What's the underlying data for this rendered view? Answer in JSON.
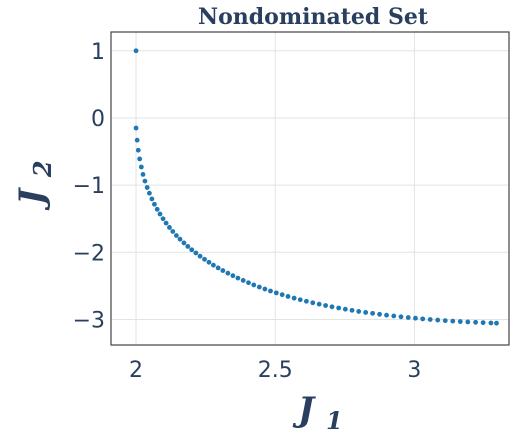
{
  "chart_data": {
    "type": "scatter",
    "title": "Nondominated Set",
    "xlabel": {
      "main": "J",
      "sub": "1"
    },
    "ylabel": {
      "main": "J",
      "sub": "2"
    },
    "xlim": [
      1.91,
      3.34
    ],
    "ylim": [
      -3.38,
      1.28
    ],
    "xticks": [
      2,
      2.5,
      3
    ],
    "xtick_labels": [
      "2",
      "2.5",
      "3"
    ],
    "yticks": [
      1,
      0,
      -1,
      -2,
      -3
    ],
    "ytick_labels": [
      "1",
      "0",
      "−1",
      "−2",
      "−3"
    ],
    "grid": true,
    "marker_color": "#1f77b4",
    "series": [
      {
        "points": [
          [
            2.0,
            1.0
          ],
          [
            2.0,
            -0.15
          ],
          [
            2.004,
            -0.33
          ],
          [
            2.008,
            -0.48
          ],
          [
            2.013,
            -0.61
          ],
          [
            2.019,
            -0.73
          ],
          [
            2.025,
            -0.84
          ],
          [
            2.032,
            -0.94
          ],
          [
            2.04,
            -1.035
          ],
          [
            2.048,
            -1.12
          ],
          [
            2.057,
            -1.205
          ],
          [
            2.066,
            -1.285
          ],
          [
            2.076,
            -1.36
          ],
          [
            2.086,
            -1.43
          ],
          [
            2.097,
            -1.5
          ],
          [
            2.108,
            -1.565
          ],
          [
            2.12,
            -1.63
          ],
          [
            2.132,
            -1.69
          ],
          [
            2.145,
            -1.75
          ],
          [
            2.158,
            -1.805
          ],
          [
            2.172,
            -1.86
          ],
          [
            2.186,
            -1.912
          ],
          [
            2.2,
            -1.962
          ],
          [
            2.215,
            -2.01
          ],
          [
            2.23,
            -2.058
          ],
          [
            2.246,
            -2.104
          ],
          [
            2.262,
            -2.148
          ],
          [
            2.278,
            -2.191
          ],
          [
            2.295,
            -2.232
          ],
          [
            2.312,
            -2.272
          ],
          [
            2.33,
            -2.311
          ],
          [
            2.348,
            -2.348
          ],
          [
            2.366,
            -2.384
          ],
          [
            2.385,
            -2.419
          ],
          [
            2.404,
            -2.453
          ],
          [
            2.423,
            -2.486
          ],
          [
            2.443,
            -2.517
          ],
          [
            2.463,
            -2.547
          ],
          [
            2.483,
            -2.576
          ],
          [
            2.504,
            -2.604
          ],
          [
            2.525,
            -2.631
          ],
          [
            2.546,
            -2.657
          ],
          [
            2.568,
            -2.682
          ],
          [
            2.59,
            -2.706
          ],
          [
            2.612,
            -2.729
          ],
          [
            2.635,
            -2.751
          ],
          [
            2.658,
            -2.772
          ],
          [
            2.681,
            -2.792
          ],
          [
            2.704,
            -2.811
          ],
          [
            2.728,
            -2.829
          ],
          [
            2.752,
            -2.847
          ],
          [
            2.776,
            -2.864
          ],
          [
            2.8,
            -2.88
          ],
          [
            2.825,
            -2.895
          ],
          [
            2.85,
            -2.909
          ],
          [
            2.875,
            -2.923
          ],
          [
            2.9,
            -2.936
          ],
          [
            2.926,
            -2.948
          ],
          [
            2.952,
            -2.96
          ],
          [
            2.978,
            -2.971
          ],
          [
            3.004,
            -2.981
          ],
          [
            3.03,
            -2.991
          ],
          [
            3.057,
            -3.0
          ],
          [
            3.084,
            -3.009
          ],
          [
            3.111,
            -3.017
          ],
          [
            3.138,
            -3.024
          ],
          [
            3.165,
            -3.031
          ],
          [
            3.192,
            -3.037
          ],
          [
            3.22,
            -3.042
          ],
          [
            3.247,
            -3.047
          ],
          [
            3.275,
            -3.052
          ],
          [
            3.295,
            -3.055
          ]
        ]
      }
    ]
  }
}
